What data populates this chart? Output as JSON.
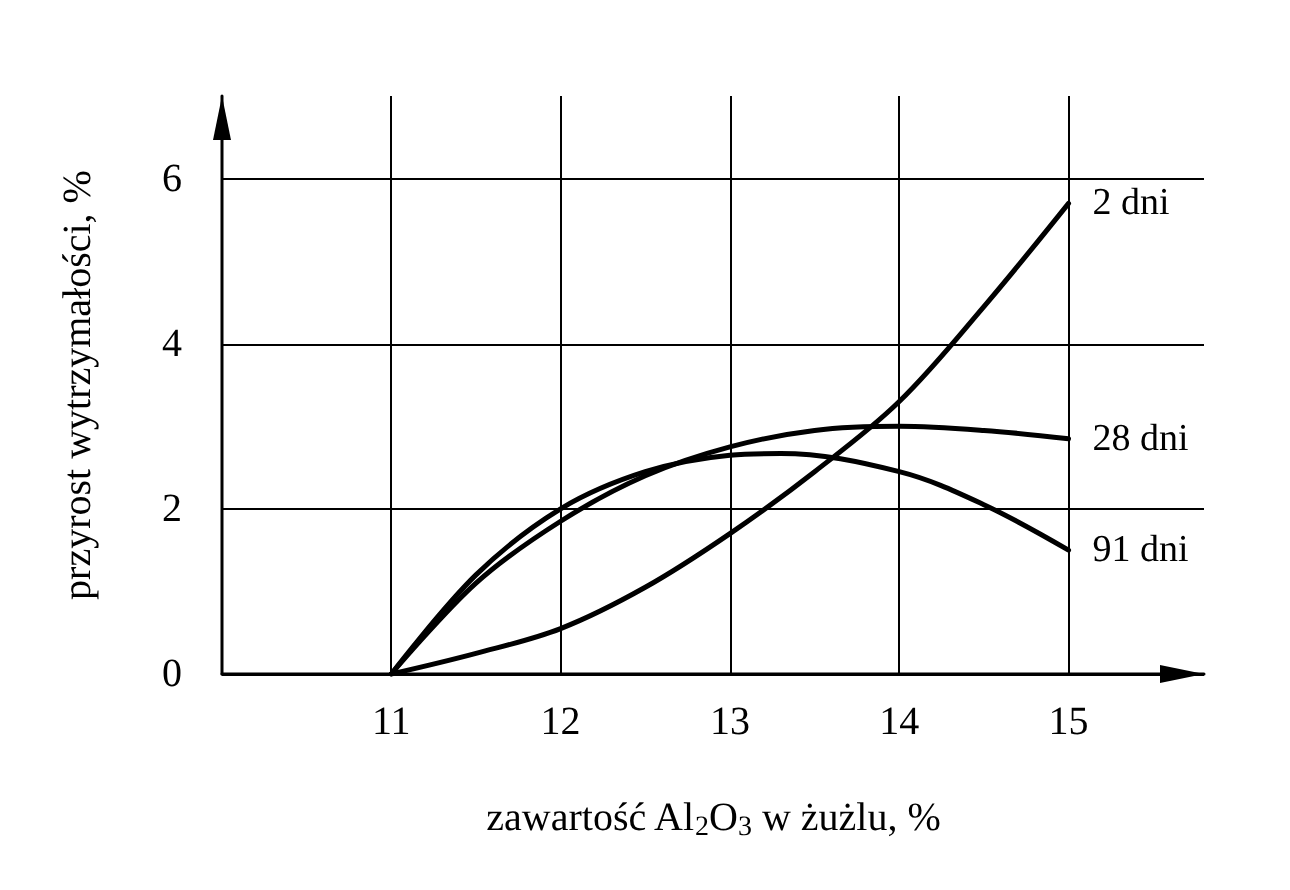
{
  "chart_data": {
    "type": "line",
    "xlabel": "zawartość Al$_{2}$O$_{3}$ w żużlu, %",
    "ylabel": "przyrost wytrzymałości, %",
    "xlim": [
      10,
      15.8
    ],
    "ylim": [
      0,
      7
    ],
    "xticks": [
      11,
      12,
      13,
      14,
      15
    ],
    "yticks": [
      0,
      2,
      4,
      6
    ],
    "grid": true,
    "marker": "none",
    "line_style": "solid",
    "series": [
      {
        "name": "2 dni",
        "color": "#000000",
        "x": [
          11,
          11.5,
          12,
          12.5,
          13,
          13.5,
          14,
          14.5,
          15
        ],
        "values": [
          0,
          0.25,
          0.55,
          1.05,
          1.7,
          2.45,
          3.3,
          4.45,
          5.7
        ]
      },
      {
        "name": "28 dni",
        "color": "#000000",
        "x": [
          11,
          11.5,
          12,
          12.5,
          13,
          13.5,
          14,
          14.5,
          15
        ],
        "values": [
          0,
          1.1,
          1.85,
          2.4,
          2.75,
          2.95,
          3.0,
          2.95,
          2.85
        ]
      },
      {
        "name": "91 dni",
        "color": "#000000",
        "x": [
          11,
          11.5,
          12,
          12.5,
          13,
          13.3,
          14,
          14.5,
          15
        ],
        "values": [
          0,
          1.2,
          2.0,
          2.45,
          2.65,
          2.67,
          2.45,
          2.05,
          1.5
        ]
      }
    ]
  }
}
